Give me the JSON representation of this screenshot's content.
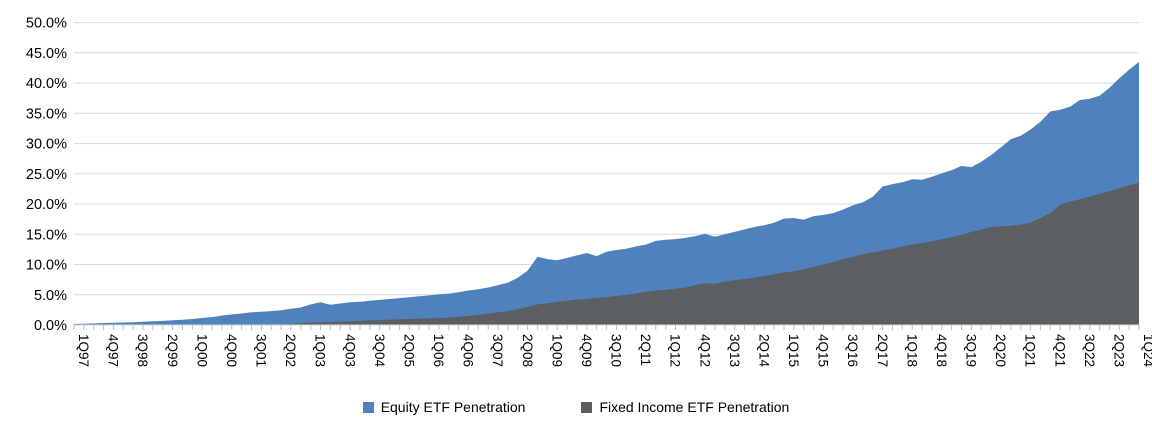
{
  "chart_data": {
    "type": "area",
    "mode": "overlapping-areas",
    "title": "",
    "xlabel": "",
    "ylabel": "",
    "ylim": [
      0,
      50
    ],
    "grid": "horizontal",
    "legend_position": "bottom-center",
    "y_tick_labels": [
      "0.0%",
      "5.0%",
      "10.0%",
      "15.0%",
      "20.0%",
      "25.0%",
      "30.0%",
      "35.0%",
      "40.0%",
      "45.0%",
      "50.0%"
    ],
    "x_tick_labels": [
      "1Q97",
      "4Q97",
      "3Q98",
      "2Q99",
      "1Q00",
      "4Q00",
      "3Q01",
      "2Q02",
      "1Q03",
      "4Q03",
      "3Q04",
      "2Q05",
      "1Q06",
      "4Q06",
      "3Q07",
      "2Q08",
      "1Q09",
      "4Q09",
      "3Q10",
      "2Q11",
      "1Q12",
      "4Q12",
      "3Q13",
      "2Q14",
      "1Q15",
      "4Q15",
      "3Q16",
      "2Q17",
      "1Q18",
      "4Q18",
      "3Q19",
      "2Q20",
      "1Q21",
      "4Q21",
      "3Q22",
      "2Q23",
      "1Q24"
    ],
    "x_label_every_n_quarters": 3,
    "colors": {
      "gridline": "#D9D9D9",
      "axis": "#D9D9D9",
      "tick": "#BFBFBF"
    },
    "series": [
      {
        "name": "Equity ETF Penetration",
        "color": "#4F81BD",
        "unit": "percent",
        "values": [
          0.18,
          0.22,
          0.27,
          0.33,
          0.38,
          0.42,
          0.47,
          0.55,
          0.62,
          0.68,
          0.78,
          0.88,
          1.0,
          1.15,
          1.3,
          1.55,
          1.75,
          1.9,
          2.1,
          2.2,
          2.3,
          2.45,
          2.7,
          2.9,
          3.4,
          3.75,
          3.35,
          3.55,
          3.75,
          3.85,
          4.0,
          4.15,
          4.3,
          4.45,
          4.6,
          4.75,
          4.9,
          5.1,
          5.2,
          5.4,
          5.7,
          5.9,
          6.2,
          6.6,
          7.0,
          7.8,
          9.0,
          11.3,
          10.9,
          10.7,
          11.1,
          11.5,
          11.9,
          11.4,
          12.1,
          12.4,
          12.6,
          13.0,
          13.3,
          13.9,
          14.1,
          14.2,
          14.4,
          14.7,
          15.1,
          14.6,
          15.0,
          15.4,
          15.8,
          16.2,
          16.5,
          16.9,
          17.6,
          17.7,
          17.4,
          18.0,
          18.2,
          18.5,
          19.1,
          19.8,
          20.3,
          21.2,
          22.9,
          23.3,
          23.6,
          24.1,
          24.0,
          24.5,
          25.1,
          25.6,
          26.3,
          26.1,
          27.0,
          28.1,
          29.4,
          30.7,
          31.3,
          32.3,
          33.6,
          35.3,
          35.6,
          36.1,
          37.2,
          37.4,
          37.9,
          39.2,
          40.8,
          42.2,
          43.5
        ]
      },
      {
        "name": "Fixed Income ETF Penetration",
        "color": "#5C5F61",
        "unit": "percent",
        "values": [
          0,
          0,
          0,
          0,
          0,
          0,
          0,
          0,
          0,
          0,
          0,
          0,
          0,
          0,
          0,
          0,
          0,
          0,
          0,
          0,
          0.05,
          0.1,
          0.15,
          0.3,
          0.4,
          0.45,
          0.5,
          0.55,
          0.6,
          0.7,
          0.8,
          0.85,
          0.9,
          0.95,
          1.0,
          1.05,
          1.1,
          1.15,
          1.2,
          1.35,
          1.5,
          1.7,
          1.9,
          2.1,
          2.3,
          2.6,
          3.0,
          3.4,
          3.6,
          3.8,
          4.0,
          4.2,
          4.3,
          4.5,
          4.6,
          4.8,
          5.0,
          5.2,
          5.5,
          5.7,
          5.8,
          6.0,
          6.2,
          6.6,
          6.9,
          6.8,
          7.2,
          7.4,
          7.6,
          7.8,
          8.1,
          8.4,
          8.7,
          8.9,
          9.2,
          9.6,
          10.0,
          10.4,
          10.9,
          11.3,
          11.7,
          12.0,
          12.3,
          12.6,
          13.0,
          13.3,
          13.6,
          13.8,
          14.2,
          14.5,
          14.9,
          15.4,
          15.8,
          16.2,
          16.3,
          16.4,
          16.6,
          16.9,
          17.7,
          18.5,
          19.9,
          20.4,
          20.8,
          21.2,
          21.7,
          22.1,
          22.6,
          23.1,
          23.5
        ]
      }
    ]
  },
  "legend": {
    "items": [
      {
        "label": "Equity ETF Penetration",
        "color": "#4F81BD"
      },
      {
        "label": "Fixed Income ETF Penetration",
        "color": "#5C5F61"
      }
    ]
  }
}
